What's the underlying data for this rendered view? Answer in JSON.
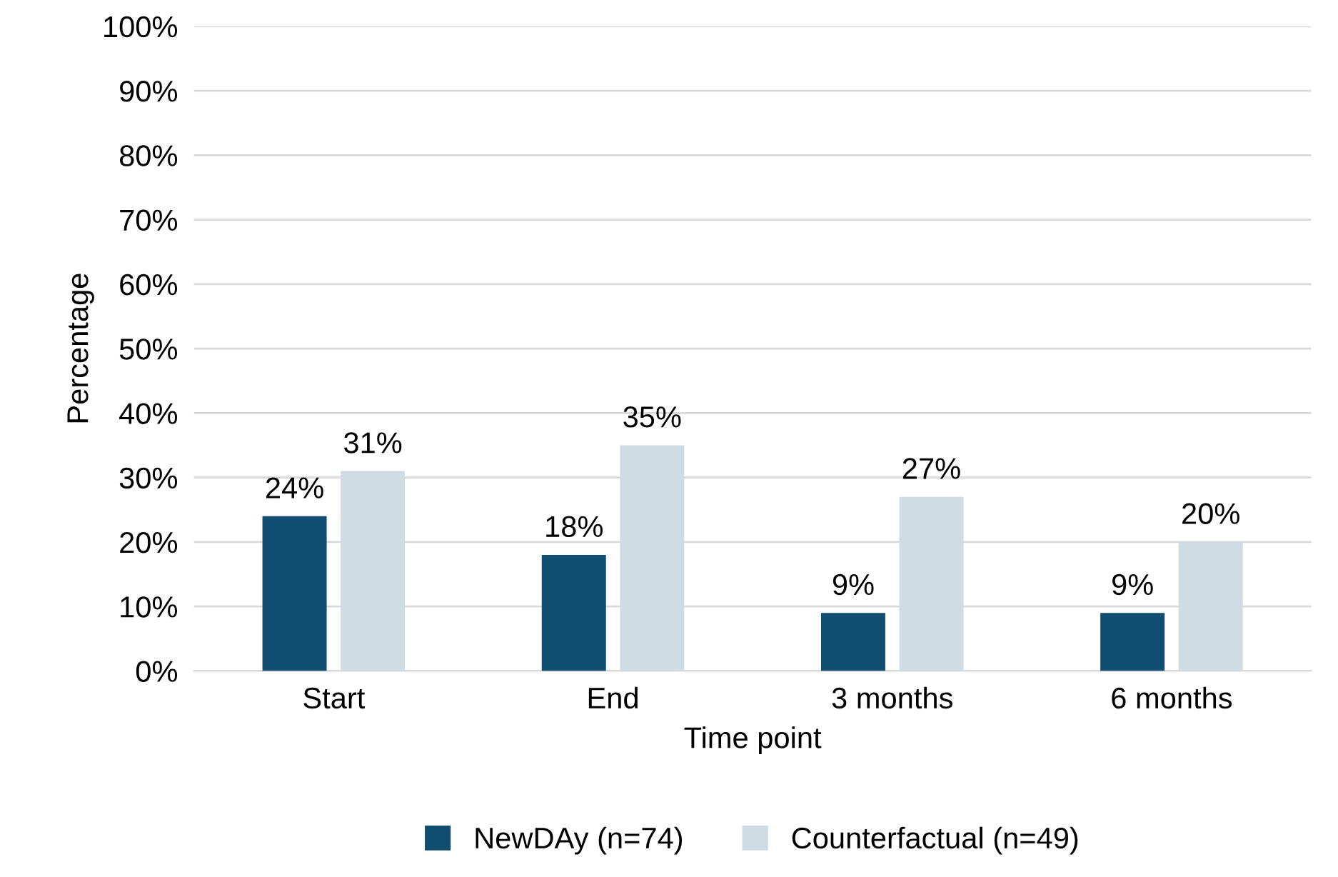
{
  "chart_data": {
    "type": "bar",
    "xlabel": "Time point",
    "ylabel": "Percentage",
    "categories": [
      "Start",
      "End",
      "3 months",
      "6 months"
    ],
    "series": [
      {
        "name": "NewDAy (n=74)",
        "color": "#124e72",
        "values": [
          24,
          18,
          9,
          9
        ],
        "value_labels": [
          "24%",
          "18%",
          "9%",
          "9%"
        ]
      },
      {
        "name": "Counterfactual (n=49)",
        "color": "#d0dce4",
        "values": [
          31,
          35,
          27,
          20
        ],
        "value_labels": [
          "31%",
          "35%",
          "27%",
          "20%"
        ]
      }
    ],
    "ylim": [
      0,
      100
    ],
    "yticks": [
      {
        "value": 0,
        "label": "0%"
      },
      {
        "value": 10,
        "label": "10%"
      },
      {
        "value": 20,
        "label": "20%"
      },
      {
        "value": 30,
        "label": "30%"
      },
      {
        "value": 40,
        "label": "40%"
      },
      {
        "value": 50,
        "label": "50%"
      },
      {
        "value": 60,
        "label": "60%"
      },
      {
        "value": 70,
        "label": "70%"
      },
      {
        "value": 80,
        "label": "80%"
      },
      {
        "value": 90,
        "label": "90%"
      },
      {
        "value": 100,
        "label": "100%"
      }
    ],
    "grid": "y",
    "legend": "bottom"
  }
}
